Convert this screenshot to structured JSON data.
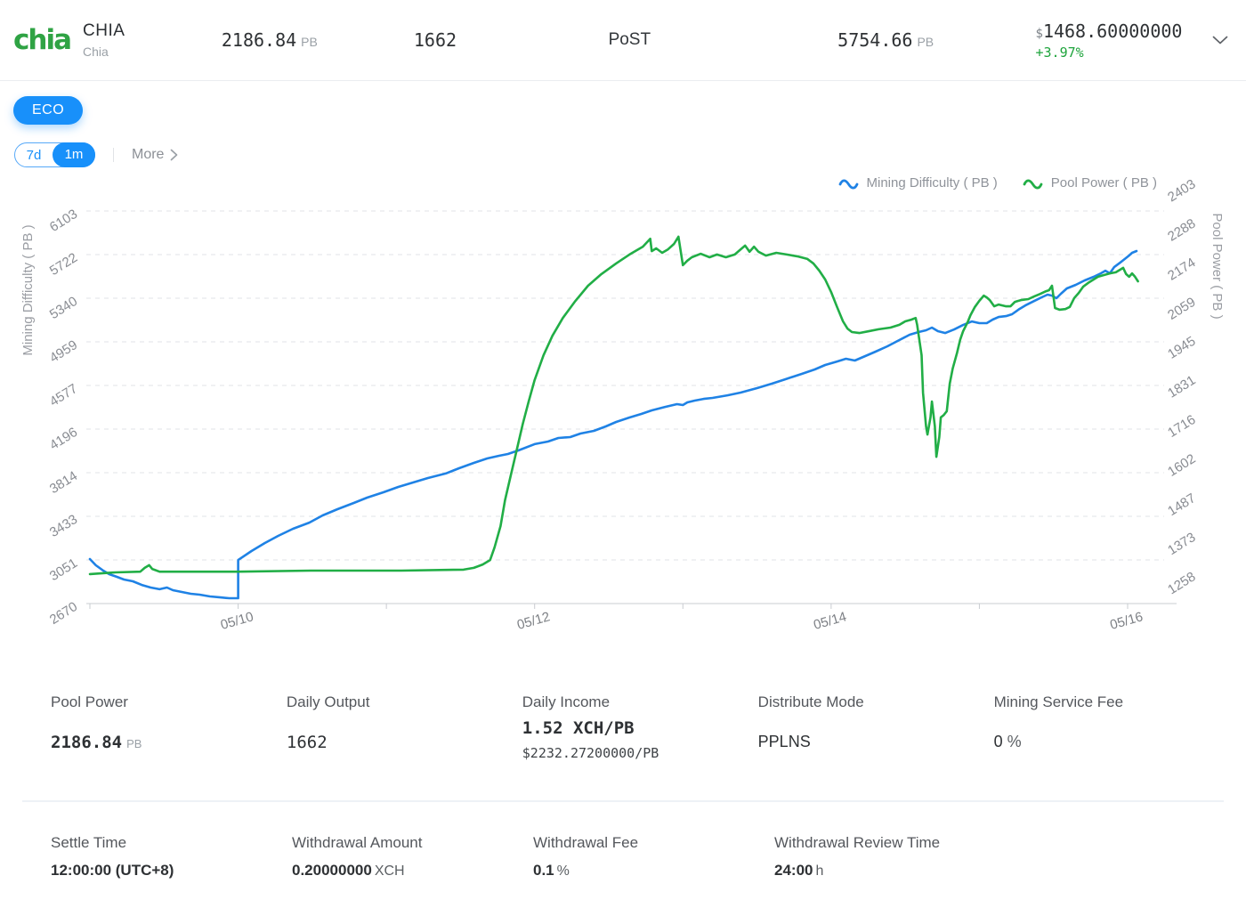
{
  "header": {
    "coin": {
      "logo_text": "chia",
      "symbol": "CHIA",
      "name": "Chia"
    },
    "stats": [
      {
        "value": "2186.84",
        "unit": "PB"
      },
      {
        "value": "1662"
      },
      {
        "value": "PoST"
      },
      {
        "value": "5754.66",
        "unit": "PB"
      }
    ],
    "price": {
      "currency": "$",
      "value": "1468.60000000",
      "change": "+3.97%"
    }
  },
  "badge": {
    "label": "ECO"
  },
  "controls": {
    "ranges": [
      {
        "label": "7d",
        "active": false
      },
      {
        "label": "1m",
        "active": true
      }
    ],
    "more_label": "More"
  },
  "colors": {
    "accent_blue": "#1890fa",
    "line_blue": "#1f82e5",
    "line_green": "#21ae46",
    "up_green": "#1ea43c"
  },
  "chart_data": {
    "type": "line",
    "x_axis": {
      "unit": "date",
      "ticks": [
        "",
        "05/10",
        "",
        "05/12",
        "",
        "05/14",
        "",
        "05/16"
      ],
      "start_day": "05/09",
      "days_span": 7.1
    },
    "left_axis": {
      "title": "Mining Difficulty ( PB )",
      "min": 2670,
      "max": 6103,
      "ticks": [
        2670,
        3051,
        3433,
        3814,
        4196,
        4577,
        4959,
        5340,
        5722,
        6103
      ]
    },
    "right_axis": {
      "title": "Pool Power ( PB )",
      "min": 1258,
      "max": 2403,
      "ticks": [
        1258,
        1373,
        1487,
        1602,
        1716,
        1831,
        1945,
        2059,
        2174,
        2288,
        2403
      ]
    },
    "grid": "dashed-horizontal",
    "legend_position": "top-right",
    "series": [
      {
        "name": "Mining Difficulty ( PB )",
        "color": "#1f82e5",
        "axis": "left",
        "points": [
          [
            0,
            3059
          ],
          [
            0.04,
            3005
          ],
          [
            0.09,
            2958
          ],
          [
            0.13,
            2927
          ],
          [
            0.18,
            2904
          ],
          [
            0.23,
            2880
          ],
          [
            0.29,
            2865
          ],
          [
            0.35,
            2833
          ],
          [
            0.41,
            2810
          ],
          [
            0.47,
            2795
          ],
          [
            0.52,
            2810
          ],
          [
            0.56,
            2787
          ],
          [
            0.62,
            2771
          ],
          [
            0.68,
            2756
          ],
          [
            0.74,
            2748
          ],
          [
            0.81,
            2732
          ],
          [
            0.88,
            2724
          ],
          [
            0.94,
            2717
          ],
          [
            1,
            2717
          ],
          [
            1,
            3051
          ],
          [
            1.09,
            3129
          ],
          [
            1.18,
            3199
          ],
          [
            1.27,
            3262
          ],
          [
            1.37,
            3324
          ],
          [
            1.48,
            3378
          ],
          [
            1.57,
            3441
          ],
          [
            1.67,
            3495
          ],
          [
            1.78,
            3550
          ],
          [
            1.87,
            3596
          ],
          [
            1.98,
            3643
          ],
          [
            2.08,
            3690
          ],
          [
            2.18,
            3729
          ],
          [
            2.28,
            3768
          ],
          [
            2.4,
            3807
          ],
          [
            2.49,
            3853
          ],
          [
            2.59,
            3900
          ],
          [
            2.68,
            3939
          ],
          [
            2.76,
            3962
          ],
          [
            2.82,
            3978
          ],
          [
            2.89,
            4009
          ],
          [
            3,
            4064
          ],
          [
            3.09,
            4087
          ],
          [
            3.16,
            4118
          ],
          [
            3.24,
            4126
          ],
          [
            3.31,
            4157
          ],
          [
            3.4,
            4180
          ],
          [
            3.48,
            4219
          ],
          [
            3.55,
            4258
          ],
          [
            3.64,
            4297
          ],
          [
            3.72,
            4328
          ],
          [
            3.79,
            4359
          ],
          [
            3.88,
            4390
          ],
          [
            3.96,
            4414
          ],
          [
            4,
            4406
          ],
          [
            4.03,
            4429
          ],
          [
            4.08,
            4445
          ],
          [
            4.14,
            4460
          ],
          [
            4.2,
            4468
          ],
          [
            4.3,
            4491
          ],
          [
            4.39,
            4515
          ],
          [
            4.5,
            4554
          ],
          [
            4.6,
            4593
          ],
          [
            4.69,
            4631
          ],
          [
            4.8,
            4678
          ],
          [
            4.89,
            4717
          ],
          [
            4.96,
            4756
          ],
          [
            5.04,
            4787
          ],
          [
            5.1,
            4811
          ],
          [
            5.16,
            4795
          ],
          [
            5.23,
            4834
          ],
          [
            5.3,
            4873
          ],
          [
            5.38,
            4920
          ],
          [
            5.46,
            4974
          ],
          [
            5.53,
            5021
          ],
          [
            5.59,
            5044
          ],
          [
            5.64,
            5060
          ],
          [
            5.68,
            5083
          ],
          [
            5.72,
            5052
          ],
          [
            5.77,
            5036
          ],
          [
            5.83,
            5067
          ],
          [
            5.89,
            5106
          ],
          [
            5.95,
            5137
          ],
          [
            6,
            5122
          ],
          [
            6.05,
            5122
          ],
          [
            6.09,
            5153
          ],
          [
            6.13,
            5176
          ],
          [
            6.18,
            5184
          ],
          [
            6.22,
            5200
          ],
          [
            6.27,
            5246
          ],
          [
            6.31,
            5277
          ],
          [
            6.37,
            5316
          ],
          [
            6.42,
            5348
          ],
          [
            6.46,
            5371
          ],
          [
            6.49,
            5363
          ],
          [
            6.52,
            5340
          ],
          [
            6.55,
            5379
          ],
          [
            6.59,
            5426
          ],
          [
            6.65,
            5457
          ],
          [
            6.71,
            5496
          ],
          [
            6.77,
            5527
          ],
          [
            6.82,
            5558
          ],
          [
            6.85,
            5581
          ],
          [
            6.88,
            5558
          ],
          [
            6.91,
            5613
          ],
          [
            6.95,
            5652
          ],
          [
            6.98,
            5683
          ],
          [
            7.01,
            5714
          ],
          [
            7.03,
            5737
          ],
          [
            7.06,
            5753
          ]
        ]
      },
      {
        "name": "Pool Power ( PB )",
        "color": "#21ae46",
        "axis": "right",
        "points": [
          [
            0,
            1344
          ],
          [
            0.17,
            1349
          ],
          [
            0.34,
            1351
          ],
          [
            0.37,
            1362
          ],
          [
            0.4,
            1370
          ],
          [
            0.42,
            1359
          ],
          [
            0.47,
            1351
          ],
          [
            0.71,
            1351
          ],
          [
            1,
            1351
          ],
          [
            1.49,
            1354
          ],
          [
            2.1,
            1354
          ],
          [
            2.52,
            1357
          ],
          [
            2.59,
            1362
          ],
          [
            2.65,
            1372
          ],
          [
            2.7,
            1385
          ],
          [
            2.73,
            1422
          ],
          [
            2.77,
            1484
          ],
          [
            2.8,
            1559
          ],
          [
            2.84,
            1634
          ],
          [
            2.88,
            1707
          ],
          [
            2.92,
            1782
          ],
          [
            2.96,
            1847
          ],
          [
            3,
            1910
          ],
          [
            3.06,
            1982
          ],
          [
            3.12,
            2039
          ],
          [
            3.19,
            2091
          ],
          [
            3.27,
            2138
          ],
          [
            3.36,
            2185
          ],
          [
            3.45,
            2219
          ],
          [
            3.55,
            2250
          ],
          [
            3.64,
            2276
          ],
          [
            3.73,
            2299
          ],
          [
            3.78,
            2322
          ],
          [
            3.79,
            2286
          ],
          [
            3.82,
            2294
          ],
          [
            3.86,
            2281
          ],
          [
            3.9,
            2291
          ],
          [
            3.94,
            2307
          ],
          [
            3.97,
            2328
          ],
          [
            4,
            2245
          ],
          [
            4.03,
            2258
          ],
          [
            4.06,
            2268
          ],
          [
            4.12,
            2278
          ],
          [
            4.18,
            2268
          ],
          [
            4.23,
            2276
          ],
          [
            4.29,
            2268
          ],
          [
            4.35,
            2276
          ],
          [
            4.39,
            2291
          ],
          [
            4.42,
            2302
          ],
          [
            4.45,
            2284
          ],
          [
            4.48,
            2299
          ],
          [
            4.51,
            2284
          ],
          [
            4.56,
            2273
          ],
          [
            4.63,
            2281
          ],
          [
            4.7,
            2276
          ],
          [
            4.78,
            2270
          ],
          [
            4.84,
            2263
          ],
          [
            4.88,
            2250
          ],
          [
            4.92,
            2229
          ],
          [
            4.96,
            2203
          ],
          [
            5,
            2167
          ],
          [
            5.04,
            2123
          ],
          [
            5.08,
            2081
          ],
          [
            5.11,
            2060
          ],
          [
            5.14,
            2050
          ],
          [
            5.19,
            2047
          ],
          [
            5.25,
            2052
          ],
          [
            5.32,
            2058
          ],
          [
            5.4,
            2063
          ],
          [
            5.46,
            2071
          ],
          [
            5.5,
            2081
          ],
          [
            5.54,
            2086
          ],
          [
            5.57,
            2091
          ],
          [
            5.58,
            2071
          ],
          [
            5.61,
            1982
          ],
          [
            5.62,
            1873
          ],
          [
            5.64,
            1775
          ],
          [
            5.65,
            1751
          ],
          [
            5.67,
            1801
          ],
          [
            5.68,
            1847
          ],
          [
            5.7,
            1775
          ],
          [
            5.71,
            1686
          ],
          [
            5.73,
            1744
          ],
          [
            5.74,
            1801
          ],
          [
            5.76,
            1808
          ],
          [
            5.78,
            1819
          ],
          [
            5.8,
            1899
          ],
          [
            5.82,
            1943
          ],
          [
            5.85,
            1990
          ],
          [
            5.87,
            2027
          ],
          [
            5.89,
            2052
          ],
          [
            5.92,
            2078
          ],
          [
            5.94,
            2099
          ],
          [
            5.97,
            2123
          ],
          [
            6,
            2141
          ],
          [
            6.03,
            2156
          ],
          [
            6.05,
            2151
          ],
          [
            6.07,
            2143
          ],
          [
            6.1,
            2125
          ],
          [
            6.13,
            2130
          ],
          [
            6.18,
            2125
          ],
          [
            6.21,
            2125
          ],
          [
            6.24,
            2138
          ],
          [
            6.28,
            2143
          ],
          [
            6.33,
            2146
          ],
          [
            6.37,
            2154
          ],
          [
            6.41,
            2161
          ],
          [
            6.45,
            2169
          ],
          [
            6.47,
            2172
          ],
          [
            6.49,
            2185
          ],
          [
            6.51,
            2120
          ],
          [
            6.54,
            2115
          ],
          [
            6.58,
            2117
          ],
          [
            6.61,
            2123
          ],
          [
            6.64,
            2149
          ],
          [
            6.67,
            2164
          ],
          [
            6.7,
            2182
          ],
          [
            6.74,
            2195
          ],
          [
            6.77,
            2203
          ],
          [
            6.8,
            2211
          ],
          [
            6.84,
            2216
          ],
          [
            6.88,
            2221
          ],
          [
            6.92,
            2224
          ],
          [
            6.95,
            2232
          ],
          [
            6.97,
            2237
          ],
          [
            6.99,
            2219
          ],
          [
            7.01,
            2211
          ],
          [
            7.03,
            2221
          ],
          [
            7.05,
            2211
          ],
          [
            7.07,
            2198
          ]
        ]
      }
    ]
  },
  "stats_row1": [
    {
      "label": "Pool Power",
      "value": "2186.84",
      "unit": "PB"
    },
    {
      "label": "Daily Output",
      "value": "1662"
    },
    {
      "label": "Daily Income",
      "value": "1.52 XCH/PB",
      "sub": "$2232.27200000/PB"
    },
    {
      "label": "Distribute Mode",
      "value": "PPLNS"
    },
    {
      "label": "Mining Service Fee",
      "value": "0",
      "unit": "%"
    }
  ],
  "stats_row2": [
    {
      "label": "Settle Time",
      "value": "12:00:00 (UTC+8)"
    },
    {
      "label": "Withdrawal Amount",
      "value": "0.20000000",
      "unit": "XCH"
    },
    {
      "label": "Withdrawal Fee",
      "value": "0.1",
      "unit": "%"
    },
    {
      "label": "Withdrawal Review Time",
      "value": "24:00",
      "unit": "h"
    }
  ]
}
